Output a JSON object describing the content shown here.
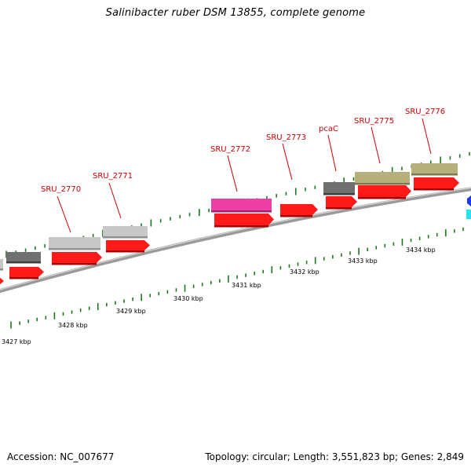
{
  "title": "Salinibacter ruber DSM 13855, complete genome",
  "footer": {
    "accession": "Accession: NC_007677",
    "summary": "Topology: circular; Length: 3,551,823 bp; Genes: 2,849"
  },
  "scale_labels": [
    "3427 kbp",
    "3428 kbp",
    "3429 kbp",
    "3430 kbp",
    "3431 kbp",
    "3432 kbp",
    "3433 kbp",
    "3434 kbp"
  ],
  "genes": [
    {
      "id": "g-left-dark",
      "label": "",
      "row": "outer",
      "color": "#707070"
    },
    {
      "id": "g-left-edge",
      "label": "",
      "row": "outer",
      "color": "#c8c8c8"
    },
    {
      "id": "g-2770",
      "label": "SRU_2770",
      "row": "outer",
      "color": "#c8c8c8"
    },
    {
      "id": "g-2771",
      "label": "SRU_2771",
      "row": "outer",
      "color": "#c8c8c8"
    },
    {
      "id": "g-2772",
      "label": "SRU_2772",
      "row": "outer",
      "color": "#ee3fa6"
    },
    {
      "id": "g-2773",
      "label": "SRU_2773",
      "row": "cds",
      "color": "#ff1a1a"
    },
    {
      "id": "g-pcaC",
      "label": "pcaC",
      "row": "outer",
      "color": "#707070"
    },
    {
      "id": "g-2775",
      "label": "SRU_2775",
      "row": "outer",
      "color": "#b5b07c"
    },
    {
      "id": "g-2776",
      "label": "SRU_2776",
      "row": "outer",
      "color": "#b5b07c"
    }
  ],
  "colors": {
    "label": "#cc0000",
    "tick": "#1a7a1a",
    "backbone": "#8a8a8a",
    "cds": "#ff1a1a",
    "partial_blue": "#1a3aff",
    "partial_cyan": "#22e3f0"
  }
}
